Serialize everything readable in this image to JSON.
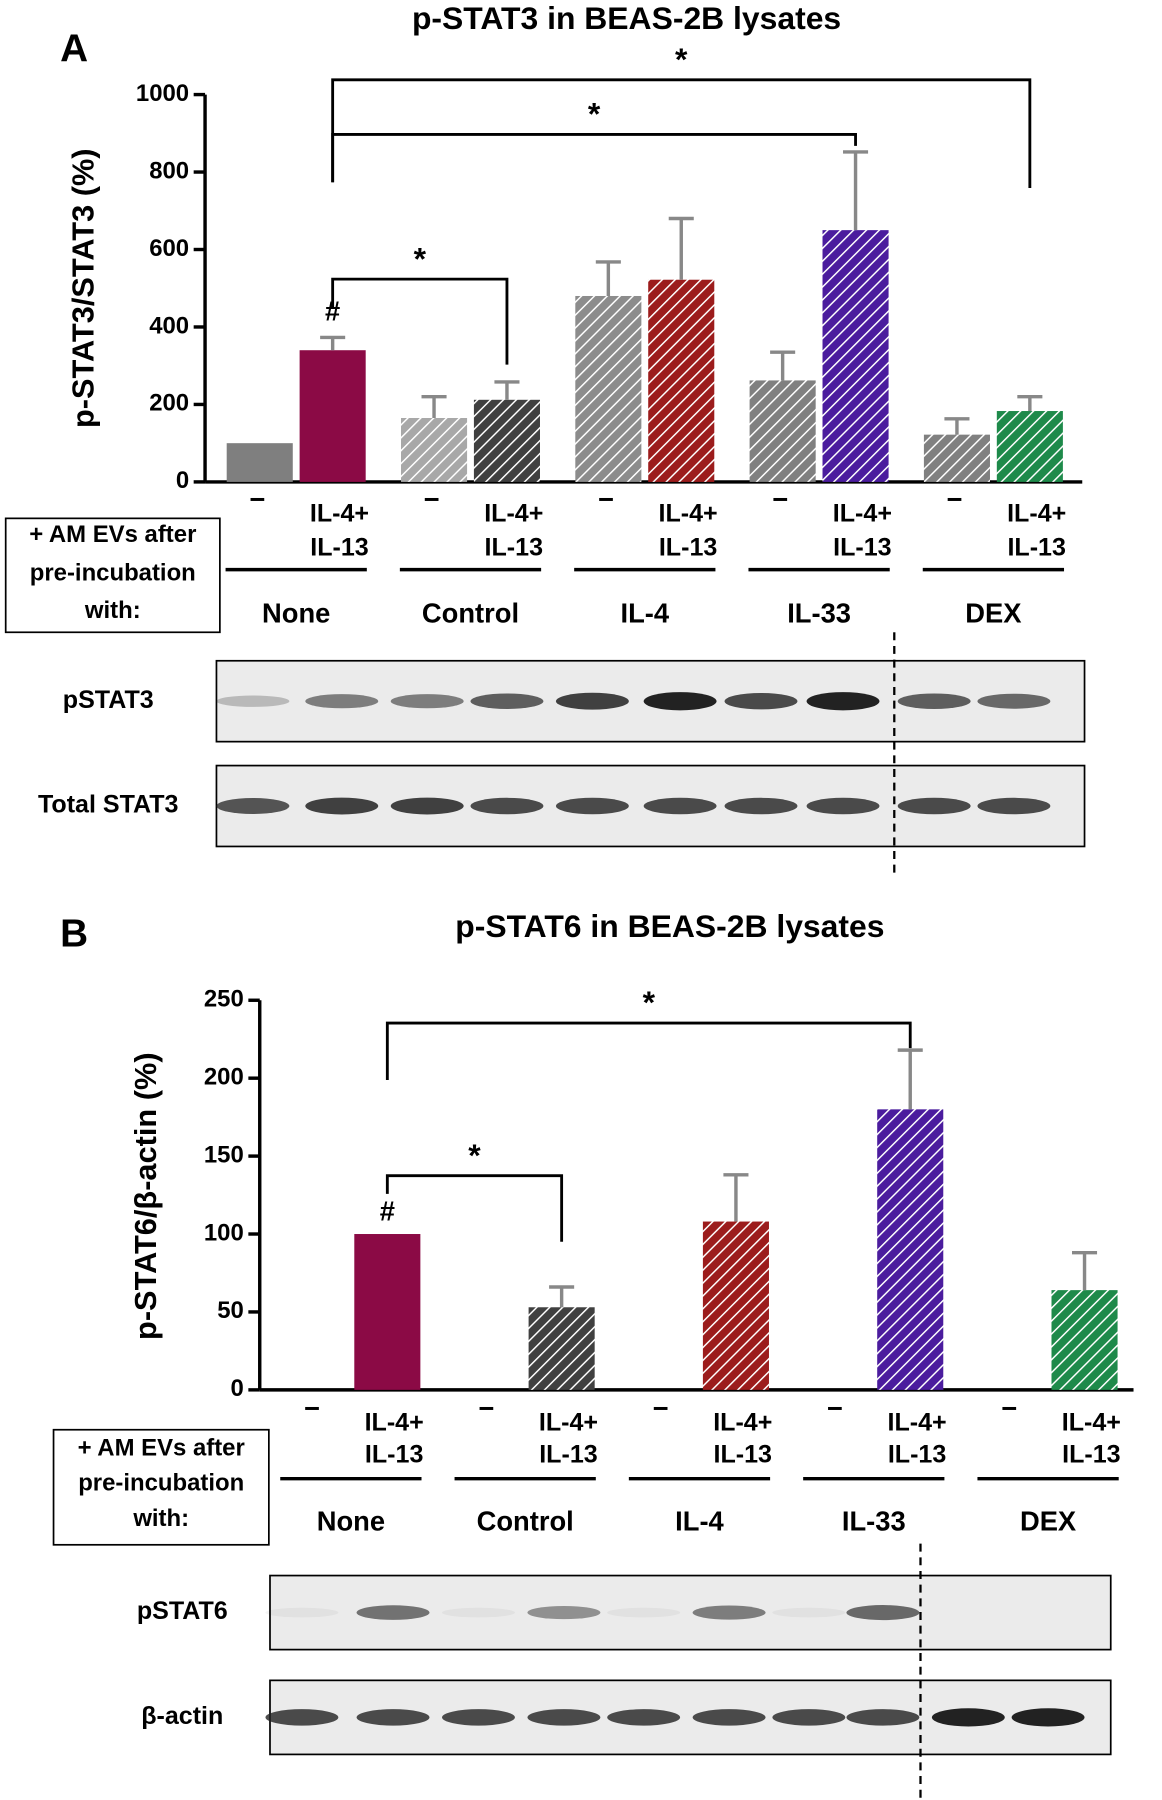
{
  "chart_data": [
    {
      "type": "bar",
      "panel": "A",
      "title": "p-STAT3 in BEAS-2B lysates",
      "y_label": "p-STAT3/STAT3 (%)",
      "categories": [
        "None",
        "Control",
        "IL-4",
        "IL-33",
        "DEX"
      ],
      "series": [
        {
          "name": "−",
          "values": [
            100,
            165,
            480,
            262,
            122
          ],
          "errors": [
            null,
            55,
            88,
            73,
            41
          ],
          "colors": [
            "#7f7f7f",
            "#a8a8a8",
            "#8c8c8c",
            "#808080",
            "#808080"
          ],
          "hatched": [
            false,
            true,
            true,
            true,
            true
          ]
        },
        {
          "name": [
            "IL-4+",
            "IL-13"
          ],
          "values": [
            340,
            212,
            522,
            650,
            183
          ],
          "errors": [
            33,
            46,
            158,
            202,
            37
          ],
          "colors": [
            "#8b0a45",
            "#404040",
            "#9c1c1c",
            "#4b1c9e",
            "#1e8a4a"
          ],
          "hatched": [
            false,
            true,
            true,
            true,
            true
          ]
        }
      ],
      "ylim": [
        0,
        1000
      ],
      "yticks": [
        0,
        200,
        400,
        600,
        800,
        1000
      ],
      "row_label": [
        "+ AM EVs after",
        "pre-incubation",
        "with:"
      ],
      "brackets": [
        {
          "from": "None",
          "to": "Control",
          "label": "*"
        },
        {
          "from": "None",
          "to": "IL-33",
          "label": "*"
        },
        {
          "from": "None",
          "to": "DEX",
          "label": "*"
        }
      ],
      "annotations": [
        {
          "text": "#",
          "category": "None"
        }
      ],
      "blots": [
        "pSTAT3",
        "Total STAT3"
      ]
    },
    {
      "type": "bar",
      "panel": "B",
      "title": "p-STAT6 in BEAS-2B lysates",
      "y_label": "p-STAT6/β-actin (%)",
      "categories": [
        "None",
        "Control",
        "IL-4",
        "IL-33",
        "DEX"
      ],
      "series": [
        {
          "name": "−",
          "values": [
            null,
            null,
            null,
            null,
            null
          ],
          "errors": [
            null,
            null,
            null,
            null,
            null
          ],
          "colors": [
            "#7f7f7f",
            "#7f7f7f",
            "#7f7f7f",
            "#7f7f7f",
            "#7f7f7f"
          ],
          "hatched": [
            false,
            false,
            false,
            false,
            false
          ]
        },
        {
          "name": [
            "IL-4+",
            "IL-13"
          ],
          "values": [
            100,
            53,
            108,
            180,
            64
          ],
          "errors": [
            null,
            13,
            30,
            38,
            24
          ],
          "colors": [
            "#8b0a45",
            "#404040",
            "#9c1c1c",
            "#4b1c9e",
            "#1e8a4a"
          ],
          "hatched": [
            false,
            true,
            true,
            true,
            true
          ]
        }
      ],
      "ylim": [
        0,
        250
      ],
      "yticks": [
        0,
        50,
        100,
        150,
        200,
        250
      ],
      "row_label": [
        "+ AM EVs after",
        "pre-incubation",
        "with:"
      ],
      "brackets": [
        {
          "from": "None",
          "to": "IL-33",
          "label": "*"
        },
        {
          "from": "None",
          "to": "Control",
          "label": "*"
        }
      ],
      "annotations": [
        {
          "text": "#",
          "category": "None"
        }
      ],
      "blots": [
        "pSTAT6",
        "β-actin"
      ]
    }
  ]
}
